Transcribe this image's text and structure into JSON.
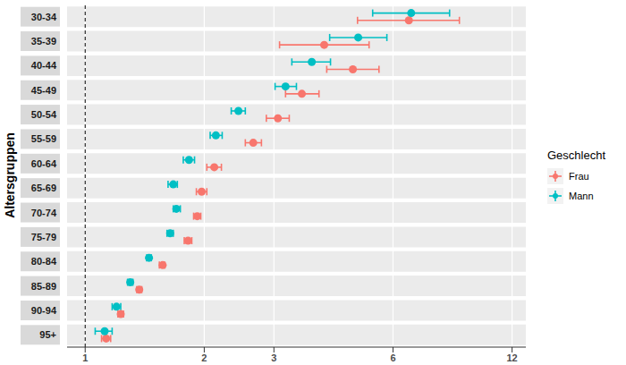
{
  "chart_data": {
    "type": "scatter",
    "orientation": "horizontal",
    "log": "x",
    "grid": true,
    "legend": "right",
    "legend_title": "Geschlecht",
    "y_label": "Altersgruppen",
    "reference_line": 1,
    "xlim": [
      0.9,
      13
    ],
    "xticks": [
      1,
      2,
      3,
      6,
      12
    ],
    "categories": [
      "30-34",
      "35-39",
      "40-44",
      "45-49",
      "50-54",
      "55-59",
      "60-64",
      "65-69",
      "70-74",
      "75-79",
      "80-84",
      "85-89",
      "90-94",
      "95+"
    ],
    "series": [
      {
        "name": "Frau",
        "color": "#F8766D",
        "marker": "circle",
        "values": [
          6.58,
          4.02,
          4.75,
          3.53,
          3.07,
          2.66,
          2.12,
          1.97,
          1.92,
          1.82,
          1.57,
          1.37,
          1.23,
          1.13
        ],
        "lower": [
          4.88,
          3.1,
          4.08,
          3.21,
          2.87,
          2.54,
          2.03,
          1.91,
          1.88,
          1.78,
          1.54,
          1.35,
          1.21,
          1.1
        ],
        "upper": [
          8.83,
          5.22,
          5.53,
          3.9,
          3.28,
          2.79,
          2.21,
          2.03,
          1.96,
          1.86,
          1.59,
          1.39,
          1.25,
          1.16
        ]
      },
      {
        "name": "Mann",
        "color": "#00BFC4",
        "marker": "circle",
        "values": [
          6.67,
          4.9,
          3.74,
          3.21,
          2.44,
          2.14,
          1.83,
          1.67,
          1.7,
          1.64,
          1.45,
          1.3,
          1.2,
          1.12
        ],
        "lower": [
          5.33,
          4.15,
          3.33,
          3.02,
          2.34,
          2.07,
          1.77,
          1.62,
          1.67,
          1.61,
          1.43,
          1.28,
          1.17,
          1.06
        ],
        "upper": [
          8.34,
          5.79,
          4.17,
          3.42,
          2.54,
          2.22,
          1.89,
          1.71,
          1.74,
          1.67,
          1.47,
          1.32,
          1.23,
          1.17
        ]
      }
    ]
  }
}
